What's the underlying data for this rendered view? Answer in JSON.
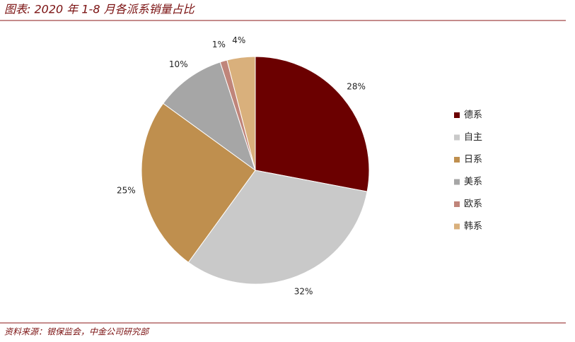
{
  "chart_data": {
    "type": "pie",
    "title": "图表: 2020 年 1-8 月各派系销量占比",
    "source": "资料来源：银保监会，中金公司研究部",
    "categories": [
      "德系",
      "自主",
      "日系",
      "美系",
      "欧系",
      "韩系"
    ],
    "values": [
      28,
      32,
      25,
      10,
      1,
      4
    ],
    "value_labels": [
      "28%",
      "32%",
      "25%",
      "10%",
      "1%",
      "4%"
    ],
    "colors": [
      "#6b0000",
      "#c9c9c9",
      "#bf8f4e",
      "#a6a6a6",
      "#c0857a",
      "#d9b07c"
    ],
    "legend": "right"
  }
}
